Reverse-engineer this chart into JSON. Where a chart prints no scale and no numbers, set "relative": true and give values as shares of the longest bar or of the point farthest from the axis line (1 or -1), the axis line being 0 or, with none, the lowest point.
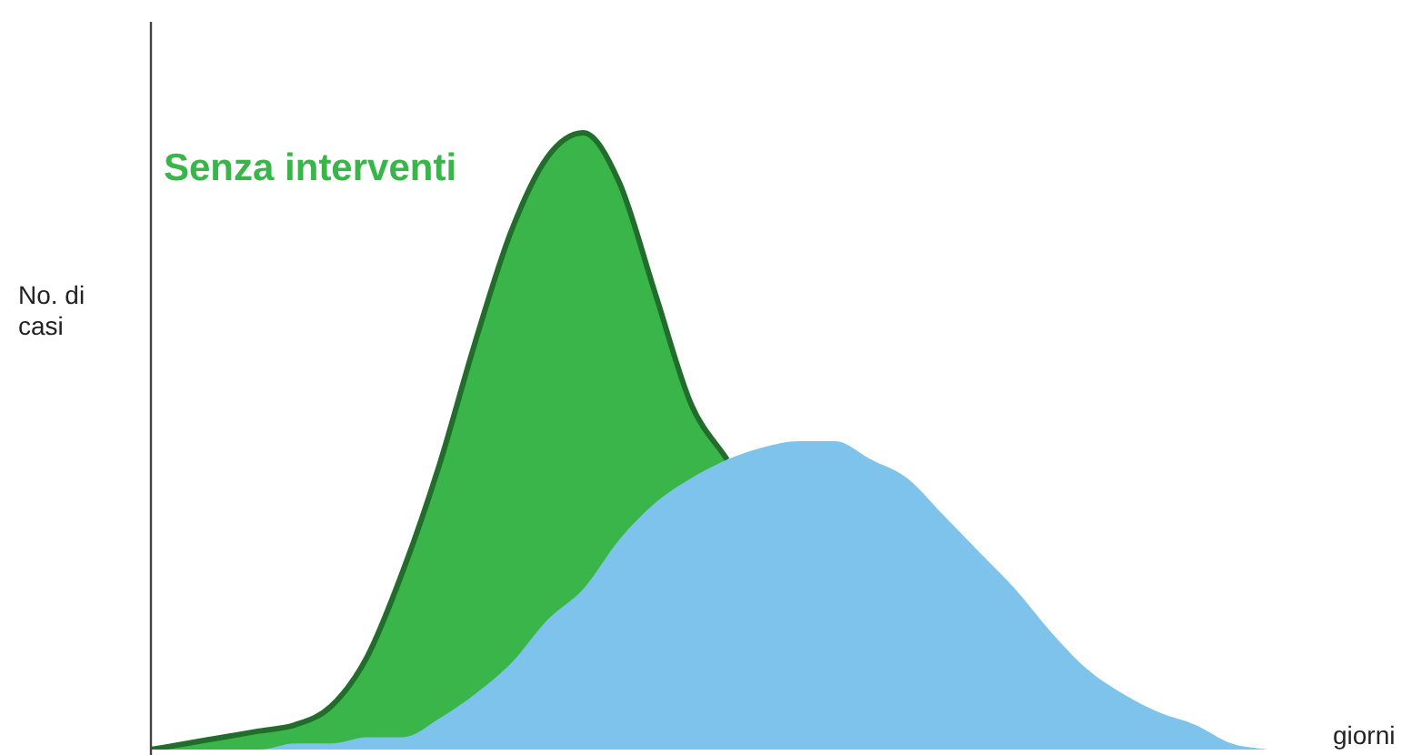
{
  "chart_data": {
    "type": "area",
    "relative": true,
    "ylabel": "No. di casi",
    "xlabel": "giorni",
    "legend": false,
    "categories": [
      null,
      null,
      null,
      null,
      null,
      null,
      null,
      null,
      null,
      null,
      null,
      null,
      null,
      null,
      null,
      null,
      null,
      null,
      null,
      null,
      null,
      null,
      null,
      null,
      null,
      null,
      null,
      null,
      null,
      null,
      null,
      null
    ],
    "series": [
      {
        "name": "Senza interventi",
        "color": "#39b54a",
        "values": [
          0,
          0.01,
          0.02,
          0.03,
          0.04,
          0.07,
          0.15,
          0.29,
          0.46,
          0.66,
          0.84,
          0.96,
          1.0,
          0.92,
          0.74,
          0.56,
          0.47,
          null,
          null,
          null,
          null,
          null,
          null,
          null,
          null,
          null,
          null,
          null,
          null,
          null,
          null,
          null
        ]
      },
      {
        "color": "#7dc3eb",
        "values": [
          0,
          0,
          0,
          0,
          0.01,
          0.01,
          0.02,
          0.02,
          0.05,
          0.09,
          0.14,
          0.21,
          0.26,
          0.34,
          0.4,
          0.44,
          0.47,
          0.49,
          0.5,
          0.5,
          0.47,
          0.44,
          0.38,
          0.32,
          0.26,
          0.19,
          0.13,
          0.09,
          0.06,
          0.04,
          0.01,
          0
        ]
      }
    ]
  }
}
